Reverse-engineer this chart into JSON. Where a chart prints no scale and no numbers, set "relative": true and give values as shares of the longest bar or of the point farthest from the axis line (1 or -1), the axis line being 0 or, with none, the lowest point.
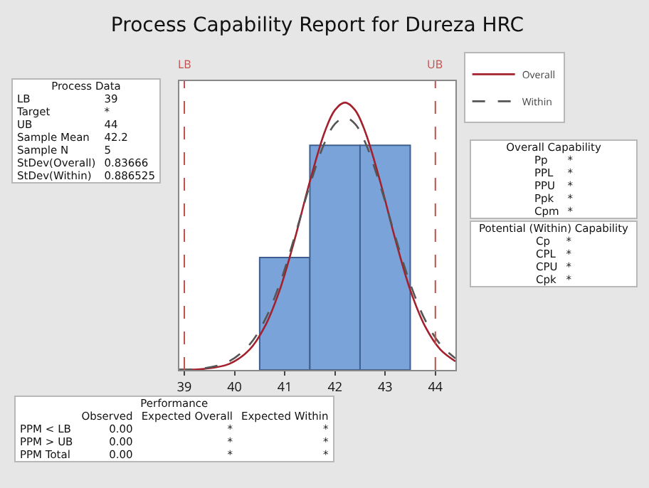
{
  "chart_data": [
    {
      "type": "histogram",
      "title": "Process Capability Report for Dureza HRC",
      "relative": true,
      "bins": [
        40.5,
        41.5,
        42.5,
        43.5
      ],
      "values": [
        0.42,
        0.84,
        0.84
      ],
      "color": "#7aa3d9",
      "series": [
        {
          "type": "line",
          "name": "Overall",
          "color": "#a3202c",
          "line_style": "solid",
          "x": [
            38.9,
            39.4,
            39.9,
            40.3,
            40.6,
            40.9,
            41.2,
            41.5,
            41.8,
            42.0,
            42.2,
            42.4,
            42.6,
            42.9,
            43.2,
            43.5,
            43.8,
            44.1,
            44.4
          ],
          "values": [
            0.0004,
            0.004,
            0.023,
            0.076,
            0.161,
            0.299,
            0.49,
            0.705,
            0.892,
            0.972,
            1,
            0.972,
            0.892,
            0.705,
            0.49,
            0.299,
            0.161,
            0.076,
            0.032
          ]
        },
        {
          "type": "line",
          "name": "Within",
          "color": "#555555",
          "line_style": "dashed",
          "x": [
            38.9,
            39.4,
            39.9,
            40.3,
            40.6,
            40.9,
            41.2,
            41.5,
            41.8,
            42.0,
            42.2,
            42.4,
            42.6,
            42.9,
            43.2,
            43.5,
            43.8,
            44.1,
            44.4
          ],
          "values": [
            0.001,
            0.006,
            0.033,
            0.095,
            0.185,
            0.322,
            0.5,
            0.691,
            0.852,
            0.92,
            0.944,
            0.92,
            0.852,
            0.691,
            0.5,
            0.322,
            0.185,
            0.095,
            0.043
          ]
        }
      ],
      "xlim": [
        38.9,
        44.4
      ],
      "xticks": [
        39,
        40,
        41,
        42,
        43,
        44
      ],
      "grid": false,
      "legend": "top right",
      "tick_labels": "x",
      "ref_lines": [
        {
          "axis": "x",
          "value": 39,
          "label": "LB",
          "color": "#c0504d",
          "line_style": "dashed"
        },
        {
          "axis": "x",
          "value": 44,
          "label": "UB",
          "color": "#c0504d",
          "line_style": "dashed"
        }
      ]
    },
    {
      "type": "other",
      "title": "Process Data",
      "annotations": [
        "LB",
        "39",
        "Target",
        "*",
        "UB",
        "44",
        "Sample Mean",
        "42.2",
        "Sample N",
        "5",
        "StDev(Overall)",
        "0.83666",
        "StDev(Within)",
        "0.886525"
      ]
    },
    {
      "type": "other",
      "title": "Overall Capability",
      "annotations": [
        "Pp",
        "*",
        "PPL",
        "*",
        "PPU",
        "*",
        "Ppk",
        "*",
        "Cpm",
        "*"
      ]
    },
    {
      "type": "other",
      "title": "Potential (Within) Capability",
      "annotations": [
        "Cp",
        "*",
        "CPL",
        "*",
        "CPU",
        "*",
        "Cpk",
        "*"
      ]
    },
    {
      "type": "other",
      "title": "Performance",
      "annotations": [
        "Observed",
        "Expected Overall",
        "Expected Within",
        "PPM < LB",
        "0.00",
        "*",
        "*",
        "PPM > UB",
        "0.00",
        "*",
        "*",
        "PPM Total",
        "0.00",
        "*",
        "*"
      ]
    }
  ]
}
